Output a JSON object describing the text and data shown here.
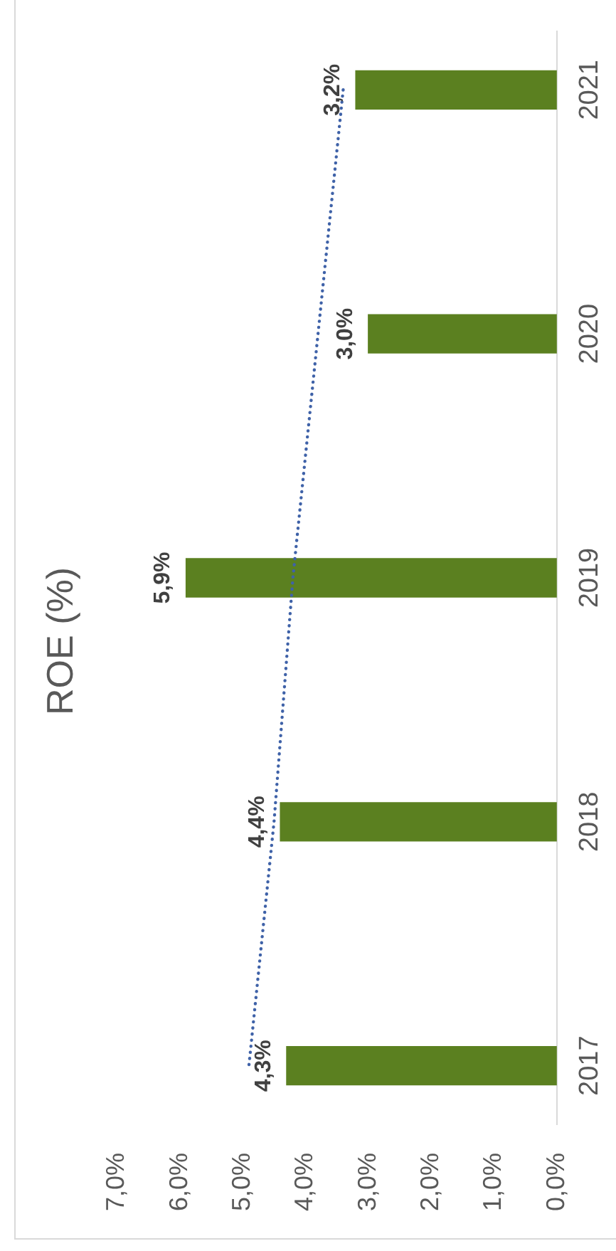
{
  "chart_data": {
    "type": "bar",
    "orientation": "horizontal",
    "title": "ROE (%)",
    "categories": [
      "2021",
      "2020",
      "2019",
      "2018",
      "2017"
    ],
    "series": [
      {
        "color": "#5b8020",
        "values": [
          3.2,
          3.0,
          5.9,
          4.4,
          4.3
        ],
        "value_labels": [
          "3,2%",
          "3,0%",
          "5,9%",
          "4,4%",
          "4,3%"
        ]
      },
      {
        "type": "line",
        "color": "#3f62a8",
        "values": [
          3.4,
          3.8,
          4.2,
          4.5,
          4.9
        ],
        "line_style": "dotted",
        "marker": "none"
      }
    ],
    "xlim": [
      7,
      0
    ],
    "xticks": [
      {
        "value": 7,
        "label": "7,0%"
      },
      {
        "value": 6,
        "label": "6,0%"
      },
      {
        "value": 5,
        "label": "5,0%"
      },
      {
        "value": 4,
        "label": "4,0%"
      },
      {
        "value": 3,
        "label": "3,0%"
      },
      {
        "value": 2,
        "label": "2,0%"
      },
      {
        "value": 1,
        "label": "1,0%"
      },
      {
        "value": 0,
        "label": "0,0%"
      }
    ]
  }
}
